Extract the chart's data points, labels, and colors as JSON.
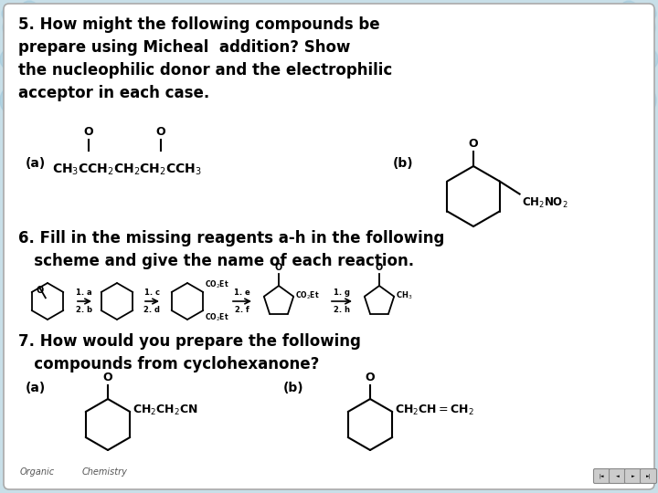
{
  "bg_color": "#ffffff",
  "border_color": "#bbbbbb",
  "outer_bg": "#c8dfe8",
  "title_color": "#000000",
  "footer_text_left": "Organic",
  "footer_text_right": "Chemistry",
  "question5_text": "5. How might the following compounds be\nprepare using Micheal  addition? Show\nthe nucleophilic donor and the electrophilic\nacceptor in each case.",
  "question6_text": "6. Fill in the missing reagents a-h in the following\n   scheme and give the name of each reaction.",
  "question7_text": "7. How would you prepare the following\n   compounds from cyclohexanone?"
}
